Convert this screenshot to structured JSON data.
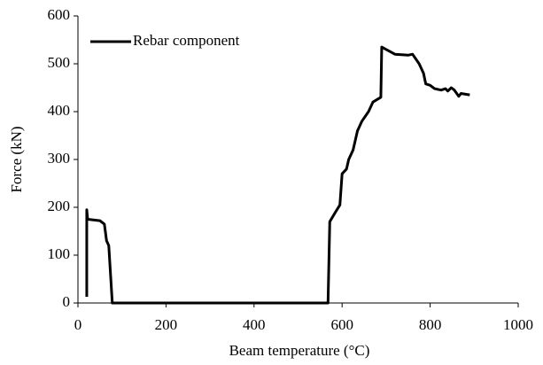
{
  "chart_data": {
    "type": "line",
    "x_label": "Beam temperature (°C)",
    "y_label": "Force (kN)",
    "xlim": [
      0,
      1000
    ],
    "xticks": [
      0,
      200,
      400,
      600,
      800,
      1000
    ],
    "ylim": [
      0,
      600
    ],
    "yticks": [
      0,
      100,
      200,
      300,
      400,
      500,
      600
    ],
    "grid": false,
    "legend": "upper left",
    "series": [
      {
        "name": "Rebar component",
        "color": "#000000",
        "x": [
          20,
          20,
          22,
          50,
          60,
          65,
          70,
          78,
          568,
          572,
          585,
          595,
          600,
          610,
          615,
          625,
          635,
          645,
          660,
          670,
          688,
          690,
          700,
          720,
          750,
          760,
          775,
          785,
          790,
          800,
          810,
          825,
          835,
          840,
          848,
          855,
          865,
          870,
          890
        ],
        "values": [
          13,
          195,
          175,
          172,
          165,
          130,
          120,
          0,
          0,
          170,
          190,
          205,
          270,
          280,
          300,
          320,
          360,
          380,
          400,
          420,
          430,
          535,
          530,
          520,
          518,
          520,
          500,
          480,
          458,
          455,
          448,
          445,
          448,
          443,
          450,
          445,
          432,
          438,
          435
        ]
      }
    ]
  }
}
